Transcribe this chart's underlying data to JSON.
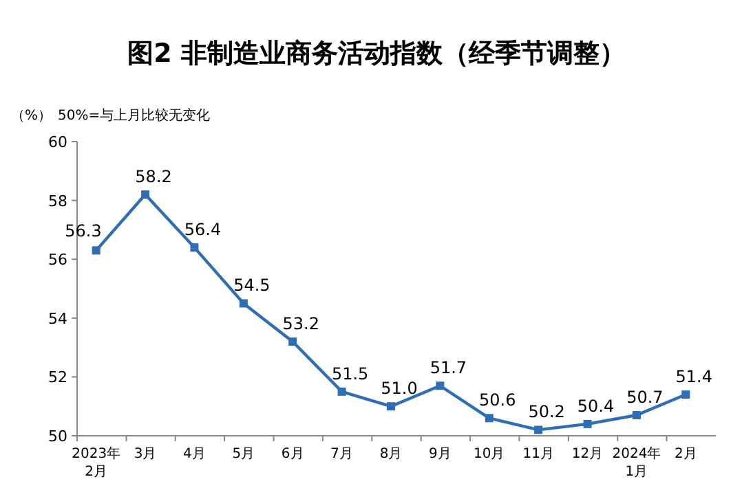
{
  "chart_data": {
    "type": "line",
    "title": "图2  非制造业商务活动指数（经季节调整）",
    "ylabel": "（%）",
    "annotations": [
      "50%=与上月比较无变化"
    ],
    "categories": [
      "2023年\n2月",
      "3月",
      "4月",
      "5月",
      "6月",
      "7月",
      "8月",
      "9月",
      "10月",
      "11月",
      "12月",
      "2024年\n1月",
      "2月"
    ],
    "series": [
      {
        "color": "#2f6db5",
        "values": [
          56.3,
          58.2,
          56.4,
          54.5,
          53.2,
          51.5,
          51.0,
          51.7,
          50.6,
          50.2,
          50.4,
          50.7,
          51.4
        ],
        "value_labels": [
          "56.3",
          "58.2",
          "56.4",
          "54.5",
          "53.2",
          "51.5",
          "51.0",
          "51.7",
          "50.6",
          "50.2",
          "50.4",
          "50.7",
          "51.4"
        ]
      }
    ],
    "ylim": [
      50,
      60
    ],
    "yticks": [
      50,
      52,
      54,
      56,
      58,
      60
    ],
    "marker": "square",
    "line_style": "solid"
  }
}
